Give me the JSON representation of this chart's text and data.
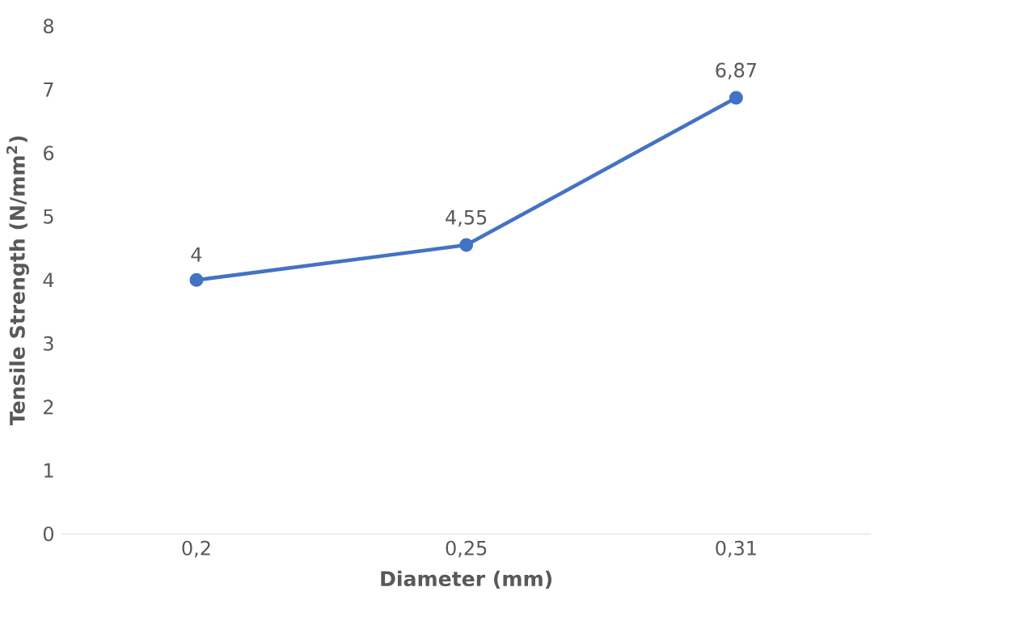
{
  "chart_data": {
    "type": "line",
    "xlabel": "Diameter (mm)",
    "ylabel": "Tensile Strength (N/mm$^{2}$)",
    "categories": [
      "0,2",
      "0,25",
      "0,31"
    ],
    "series": [
      {
        "color": "#4472c4",
        "values": [
          4,
          4.55,
          6.87
        ],
        "value_labels": [
          "4",
          "4,55",
          "6,87"
        ]
      }
    ],
    "ylim": [
      0,
      8
    ],
    "yticks": [
      0,
      1,
      2,
      3,
      4,
      5,
      6,
      7,
      8
    ],
    "marker": "circle",
    "line_style": "solid"
  }
}
